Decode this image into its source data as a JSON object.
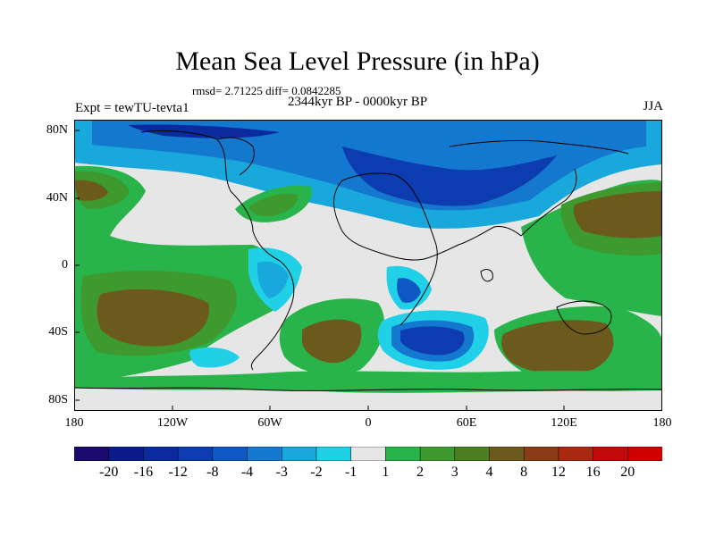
{
  "title": "Mean Sea Level Pressure (in hPa)",
  "stats": "rmsd= 2.71225 diff= 0.0842285",
  "period": "2344kyr BP - 0000kyr BP",
  "experiment": "Expt = tewTU-tevta1",
  "season": "JJA",
  "lat_labels": [
    "80N",
    "40N",
    "0",
    "40S",
    "80S"
  ],
  "lon_labels": [
    "180",
    "120W",
    "60W",
    "0",
    "60E",
    "120E",
    "180"
  ],
  "colorbar": {
    "labels": [
      "-20",
      "-16",
      "-12",
      "-8",
      "-4",
      "-3",
      "-2",
      "-1",
      "1",
      "2",
      "3",
      "4",
      "8",
      "12",
      "16",
      "20"
    ],
    "colors": [
      "#1c0a6e",
      "#0a1a88",
      "#0a2a9e",
      "#0d3cb0",
      "#0e58c4",
      "#1478cf",
      "#18a8dc",
      "#20d0e6",
      "#e6e6e6",
      "#28b44a",
      "#3e9a2e",
      "#4c7e22",
      "#6b5a1c",
      "#8a3c16",
      "#a82810",
      "#c20a0a",
      "#d00000"
    ]
  }
}
